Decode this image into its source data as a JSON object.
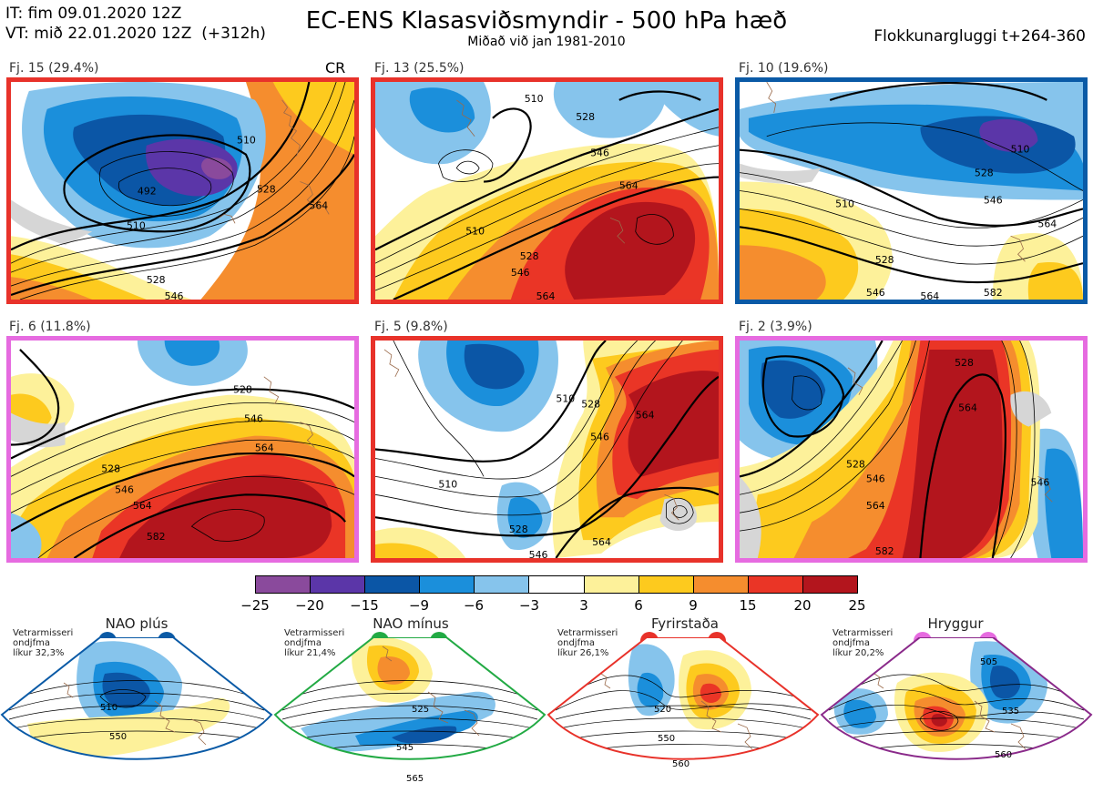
{
  "header": {
    "it_line": "IT: fim 09.01.2020 12Z",
    "vt_line": "VT: mið 22.01.2020 12Z  (+312h)",
    "title": "EC-ENS Klasasviðsmyndir - 500 hPa hæð",
    "subtitle": "Miðað við jan 1981-2010",
    "window": "Flokkunargluggi t+264-360"
  },
  "panels": [
    {
      "label": "Fj. 15 (29.4%)",
      "tag": "CR",
      "border": "#e8322a",
      "contours": [
        "492",
        "510",
        "528",
        "546",
        "564"
      ]
    },
    {
      "label": "Fj. 13 (25.5%)",
      "tag": "",
      "border": "#e8322a",
      "contours": [
        "510",
        "528",
        "546",
        "564"
      ]
    },
    {
      "label": "Fj. 10 (19.6%)",
      "tag": "",
      "border": "#0a5aa6",
      "contours": [
        "510",
        "528",
        "546",
        "564",
        "582"
      ]
    },
    {
      "label": "Fj. 6 (11.8%)",
      "tag": "",
      "border": "#e66be0",
      "contours": [
        "528",
        "546",
        "564",
        "582"
      ]
    },
    {
      "label": "Fj. 5 (9.8%)",
      "tag": "",
      "border": "#e8322a",
      "contours": [
        "510",
        "528",
        "546",
        "564"
      ]
    },
    {
      "label": "Fj. 2 (3.9%)",
      "tag": "",
      "border": "#e66be0",
      "contours": [
        "528",
        "546",
        "564",
        "582"
      ]
    }
  ],
  "colorbar": {
    "colors": [
      "#8a4a9c",
      "#5b36a8",
      "#0b56a6",
      "#1b8fdb",
      "#86c4ec",
      "#ffffff",
      "#fdf19a",
      "#fdca1e",
      "#f58d2e",
      "#ea3526",
      "#b3151d"
    ],
    "ticks": [
      "−25",
      "−20",
      "−15",
      "−9",
      "−6",
      "−3",
      "3",
      "6",
      "9",
      "15",
      "20",
      "25"
    ]
  },
  "regimes": [
    {
      "title": "NAO plús",
      "note": "Vetrarmisseri\nondjfma\nlíkur 32,3%",
      "color": "#0a5aa6",
      "contours": [
        "510",
        "550"
      ]
    },
    {
      "title": "NAO mínus",
      "note": "Vetrarmisseri\nondjfma\nlíkur 21,4%",
      "color": "#22aa44",
      "contours": [
        "525",
        "545",
        "565"
      ]
    },
    {
      "title": "Fyrirstaða",
      "note": "Vetrarmisseri\nondjfma\nlíkur 26,1%",
      "color": "#e8322a",
      "contours": [
        "520",
        "550",
        "560"
      ]
    },
    {
      "title": "Hryggur",
      "note": "Vetrarmisseri\nondjfma\nlíkur 20,2%",
      "color": "#e66be0",
      "contours": [
        "505",
        "535",
        "560"
      ]
    }
  ]
}
